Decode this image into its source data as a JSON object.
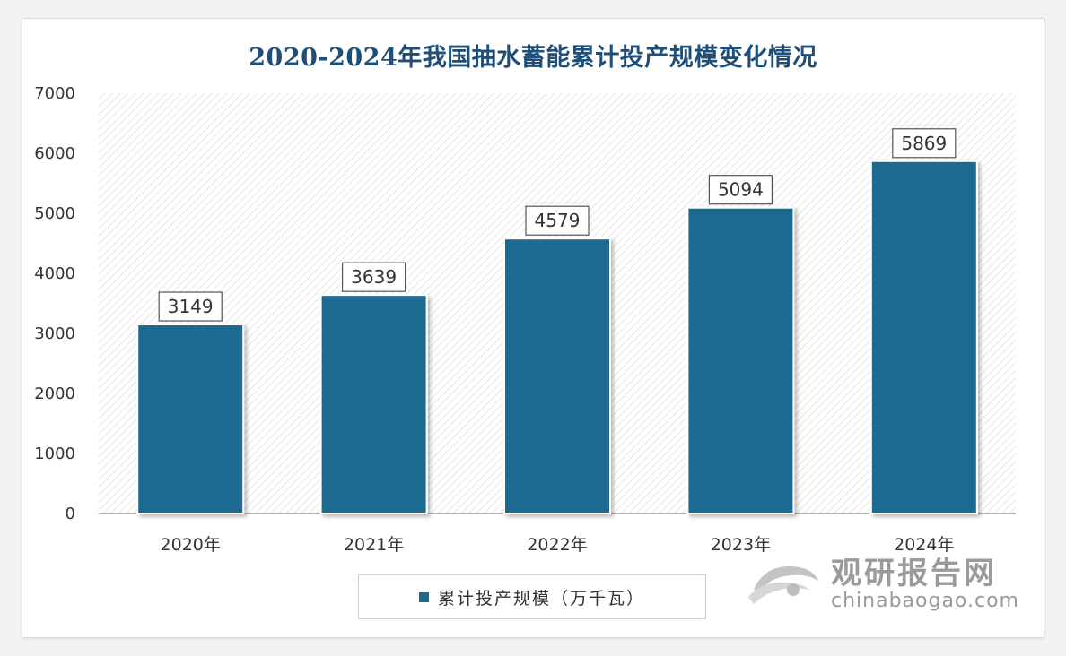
{
  "chart_data": {
    "type": "bar",
    "title": "2020-2024年我国抽水蓄能累计投产规模变化情况",
    "categories": [
      "2020年",
      "2021年",
      "2022年",
      "2023年",
      "2024年"
    ],
    "series": [
      {
        "name": "累计投产规模（万千瓦）",
        "values": [
          3149,
          3639,
          4579,
          5094,
          5869
        ]
      }
    ],
    "ylim": [
      0,
      7000
    ],
    "yticks": [
      0,
      1000,
      2000,
      3000,
      4000,
      5000,
      6000,
      7000
    ],
    "xlabel": "",
    "ylabel": "",
    "grid": false,
    "legend_position": "bottom",
    "bar_color": "#1b6a8f",
    "title_color": "#1f4e79"
  },
  "watermark": {
    "name": "观研报告网",
    "url": "chinabaogao.com"
  }
}
